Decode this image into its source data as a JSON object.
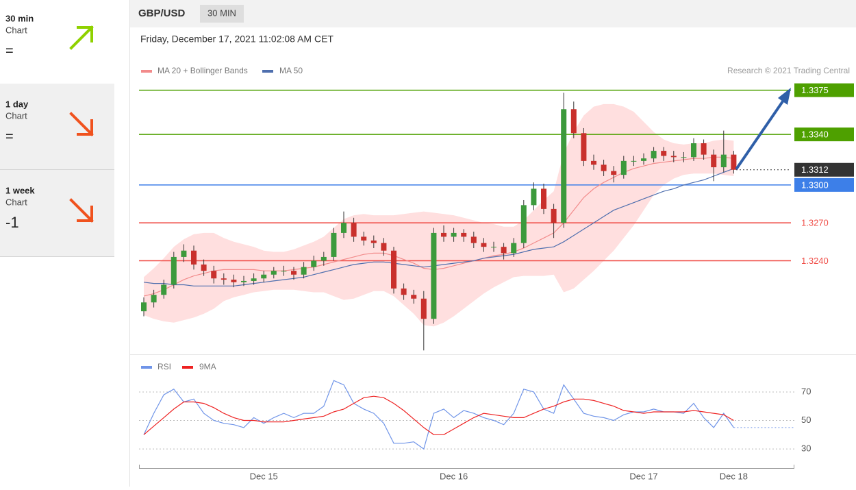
{
  "header": {
    "symbol": "GBP/USD",
    "timeframe": "30 MIN",
    "timestamp": "Friday, December 17, 2021 11:02:08 AM CET"
  },
  "sidebar": {
    "items": [
      {
        "period": "30 min",
        "kind": "Chart",
        "signal": "=",
        "arrow": "up"
      },
      {
        "period": "1 day",
        "kind": "Chart",
        "signal": "=",
        "arrow": "down"
      },
      {
        "period": "1 week",
        "kind": "Chart",
        "signal": "-1",
        "arrow": "down"
      }
    ]
  },
  "chart_data": [
    {
      "type": "candlestick",
      "credit": "Research © 2021 Trading Central",
      "categories": [
        null,
        null,
        null,
        null,
        null,
        null,
        null,
        null,
        null,
        null,
        null,
        null,
        "Dec 15",
        null,
        null,
        null,
        null,
        null,
        null,
        null,
        null,
        null,
        null,
        null,
        null,
        null,
        null,
        null,
        null,
        null,
        null,
        "Dec 16",
        null,
        null,
        null,
        null,
        null,
        null,
        null,
        null,
        null,
        null,
        null,
        null,
        null,
        null,
        null,
        null,
        null,
        null,
        "Dec 17",
        null,
        null,
        null,
        null,
        null,
        null,
        null,
        null,
        "Dec 18"
      ],
      "up_color": "#3c9a3c",
      "down_color": "#c9302c",
      "band_color": "#ffdfdf",
      "candles": [
        [
          1.32,
          1.3211,
          1.3196,
          1.3207
        ],
        [
          1.3207,
          1.3217,
          1.3203,
          1.3213
        ],
        [
          1.3213,
          1.3225,
          1.321,
          1.3221
        ],
        [
          1.3221,
          1.3247,
          1.3218,
          1.3243
        ],
        [
          1.3243,
          1.3253,
          1.3239,
          1.3248
        ],
        [
          1.3248,
          1.3252,
          1.3233,
          1.3237
        ],
        [
          1.3237,
          1.3241,
          1.3228,
          1.3232
        ],
        [
          1.3232,
          1.3236,
          1.3222,
          1.3226
        ],
        [
          1.3226,
          1.323,
          1.3221,
          1.3225
        ],
        [
          1.3225,
          1.3229,
          1.3219,
          1.3223
        ],
        [
          1.3223,
          1.3228,
          1.322,
          1.3224
        ],
        [
          1.3224,
          1.323,
          1.3221,
          1.3226
        ],
        [
          1.3226,
          1.3232,
          1.3223,
          1.3229
        ],
        [
          1.3229,
          1.3235,
          1.3226,
          1.3232
        ],
        [
          1.3232,
          1.3236,
          1.3228,
          1.3232
        ],
        [
          1.3232,
          1.3235,
          1.3225,
          1.3229
        ],
        [
          1.3229,
          1.3239,
          1.3226,
          1.3235
        ],
        [
          1.3235,
          1.3244,
          1.3232,
          1.324
        ],
        [
          1.324,
          1.3247,
          1.3236,
          1.3243
        ],
        [
          1.3243,
          1.3266,
          1.324,
          1.3262
        ],
        [
          1.3262,
          1.3279,
          1.3258,
          1.327
        ],
        [
          1.327,
          1.3274,
          1.3255,
          1.3259
        ],
        [
          1.3259,
          1.3263,
          1.3252,
          1.3256
        ],
        [
          1.3256,
          1.326,
          1.325,
          1.3254
        ],
        [
          1.3254,
          1.3258,
          1.3244,
          1.3248
        ],
        [
          1.3248,
          1.3251,
          1.3214,
          1.3218
        ],
        [
          1.3218,
          1.3222,
          1.3209,
          1.3213
        ],
        [
          1.3213,
          1.3217,
          1.3206,
          1.321
        ],
        [
          1.321,
          1.3216,
          1.3169,
          1.3194
        ],
        [
          1.3194,
          1.3266,
          1.319,
          1.3262
        ],
        [
          1.3262,
          1.3268,
          1.3255,
          1.3259
        ],
        [
          1.3259,
          1.3266,
          1.3255,
          1.3262
        ],
        [
          1.3262,
          1.3265,
          1.3255,
          1.3259
        ],
        [
          1.3259,
          1.3263,
          1.325,
          1.3254
        ],
        [
          1.3254,
          1.3258,
          1.3247,
          1.3251
        ],
        [
          1.3251,
          1.3255,
          1.3247,
          1.3251
        ],
        [
          1.3251,
          1.3254,
          1.3241,
          1.3246
        ],
        [
          1.3246,
          1.3258,
          1.3243,
          1.3254
        ],
        [
          1.3254,
          1.3288,
          1.325,
          1.3284
        ],
        [
          1.3284,
          1.3302,
          1.328,
          1.3297
        ],
        [
          1.3297,
          1.3301,
          1.3277,
          1.3281
        ],
        [
          1.3281,
          1.3285,
          1.3258,
          1.327
        ],
        [
          1.327,
          1.3373,
          1.3266,
          1.336
        ],
        [
          1.336,
          1.3366,
          1.3337,
          1.3341
        ],
        [
          1.3341,
          1.3345,
          1.3315,
          1.3319
        ],
        [
          1.3319,
          1.3324,
          1.3312,
          1.3316
        ],
        [
          1.3316,
          1.332,
          1.3307,
          1.3311
        ],
        [
          1.3311,
          1.3315,
          1.3302,
          1.3308
        ],
        [
          1.3308,
          1.3323,
          1.3305,
          1.3319
        ],
        [
          1.3319,
          1.3323,
          1.3315,
          1.3319
        ],
        [
          1.3319,
          1.3325,
          1.3316,
          1.3321
        ],
        [
          1.3321,
          1.333,
          1.3318,
          1.3327
        ],
        [
          1.3327,
          1.333,
          1.3319,
          1.3323
        ],
        [
          1.3323,
          1.3327,
          1.3318,
          1.3322
        ],
        [
          1.3322,
          1.3326,
          1.3318,
          1.3322
        ],
        [
          1.3322,
          1.3337,
          1.3319,
          1.3333
        ],
        [
          1.3333,
          1.3336,
          1.332,
          1.3324
        ],
        [
          1.3324,
          1.3328,
          1.3303,
          1.3314
        ],
        [
          1.3314,
          1.3343,
          1.331,
          1.3324
        ],
        [
          1.3324,
          1.3327,
          1.3309,
          1.3312
        ]
      ],
      "series": [
        {
          "name": "MA 20 + Bollinger Bands",
          "color": "#f28b8b",
          "values": [
            1.3212,
            1.3214,
            1.3217,
            1.3221,
            1.3225,
            1.3228,
            1.323,
            1.3232,
            1.3233,
            1.3233,
            1.3233,
            1.3233,
            1.3232,
            1.3232,
            1.3232,
            1.3233,
            1.3234,
            1.3235,
            1.3237,
            1.3239,
            1.3241,
            1.3243,
            1.3245,
            1.3246,
            1.3246,
            1.3244,
            1.3241,
            1.3238,
            1.3234,
            1.3233,
            1.3234,
            1.3236,
            1.3238,
            1.324,
            1.3242,
            1.3244,
            1.3245,
            1.3247,
            1.325,
            1.3254,
            1.3258,
            1.3262,
            1.327,
            1.328,
            1.329,
            1.3297,
            1.3302,
            1.3306,
            1.331,
            1.3313,
            1.3315,
            1.3317,
            1.3318,
            1.3319,
            1.332,
            1.3321,
            1.3321,
            1.3322,
            1.3322,
            1.3321
          ],
          "upper": [
            1.3227,
            1.3234,
            1.3242,
            1.3251,
            1.3257,
            1.3261,
            1.3262,
            1.3262,
            1.3258,
            1.3255,
            1.3253,
            1.3251,
            1.3248,
            1.3247,
            1.3247,
            1.3249,
            1.3252,
            1.3255,
            1.3259,
            1.3266,
            1.3273,
            1.3276,
            1.3277,
            1.3276,
            1.3276,
            1.3276,
            1.3277,
            1.3278,
            1.3279,
            1.3278,
            1.3277,
            1.3276,
            1.3274,
            1.3272,
            1.327,
            1.3269,
            1.3267,
            1.3267,
            1.3272,
            1.328,
            1.3288,
            1.3295,
            1.3325,
            1.3342,
            1.3355,
            1.3362,
            1.3364,
            1.3364,
            1.3362,
            1.3358,
            1.335,
            1.3342,
            1.3336,
            1.3333,
            1.3332,
            1.3333,
            1.3333,
            1.3335,
            1.3336,
            1.3335
          ],
          "lower": [
            1.3197,
            1.3194,
            1.3192,
            1.3191,
            1.3193,
            1.3195,
            1.3198,
            1.3202,
            1.3208,
            1.3211,
            1.3213,
            1.3215,
            1.3216,
            1.3217,
            1.3217,
            1.3217,
            1.3216,
            1.3215,
            1.3215,
            1.3212,
            1.3209,
            1.321,
            1.3213,
            1.3216,
            1.3216,
            1.3212,
            1.3205,
            1.3198,
            1.3189,
            1.3188,
            1.3191,
            1.3196,
            1.3202,
            1.3208,
            1.3214,
            1.3219,
            1.3223,
            1.3227,
            1.3228,
            1.3228,
            1.3228,
            1.3229,
            1.3215,
            1.3218,
            1.3225,
            1.3232,
            1.324,
            1.3248,
            1.3258,
            1.3268,
            1.328,
            1.3292,
            1.33,
            1.3305,
            1.3308,
            1.3309,
            1.3309,
            1.3309,
            1.3308,
            1.3307
          ]
        },
        {
          "name": "MA 50",
          "color": "#4f6fae",
          "values": [
            1.3223,
            1.3222,
            1.3222,
            1.3221,
            1.3221,
            1.322,
            1.322,
            1.322,
            1.322,
            1.322,
            1.3221,
            1.3222,
            1.3223,
            1.3224,
            1.3225,
            1.3226,
            1.3227,
            1.3229,
            1.3231,
            1.3233,
            1.3235,
            1.3237,
            1.3238,
            1.3239,
            1.3239,
            1.3238,
            1.3237,
            1.3236,
            1.3235,
            1.3236,
            1.3237,
            1.3238,
            1.3239,
            1.324,
            1.3242,
            1.3243,
            1.3244,
            1.3245,
            1.3247,
            1.3249,
            1.325,
            1.3251,
            1.3255,
            1.326,
            1.3265,
            1.327,
            1.3275,
            1.328,
            1.3283,
            1.3286,
            1.3289,
            1.3292,
            1.3295,
            1.3297,
            1.33,
            1.3302,
            1.3304,
            1.3307,
            1.331,
            1.3313
          ]
        }
      ],
      "levels": [
        {
          "value": 1.3375,
          "color": "#4ea000",
          "boxed": true
        },
        {
          "value": 1.334,
          "label": "1.3340",
          "color": "#4ea000",
          "boxed": true
        },
        {
          "value": 1.3312,
          "color": "#333333",
          "boxed": true,
          "dotted": true
        },
        {
          "value": 1.33,
          "label": "1.3300",
          "color": "#3d7fe8",
          "boxed": true
        },
        {
          "value": 1.327,
          "label": "1.3270",
          "color": "#f0504a",
          "boxed": false
        },
        {
          "value": 1.324,
          "label": "1.3240",
          "color": "#f0504a",
          "boxed": false
        }
      ],
      "ylim": [
        1.3167,
        1.3422
      ]
    },
    {
      "type": "line",
      "ylim": [
        18,
        95
      ],
      "yticks": [
        30,
        50,
        70
      ],
      "grid": true,
      "series": [
        {
          "name": "RSI",
          "color": "#6f94e8",
          "values": [
            40,
            55,
            68,
            72,
            63,
            65,
            55,
            50,
            48,
            47,
            45,
            52,
            48,
            52,
            55,
            52,
            55,
            55,
            60,
            78,
            75,
            62,
            58,
            55,
            48,
            34,
            34,
            35,
            30,
            55,
            58,
            52,
            57,
            55,
            52,
            50,
            47,
            55,
            72,
            70,
            58,
            55,
            75,
            65,
            55,
            53,
            52,
            50,
            54,
            56,
            56,
            58,
            56,
            56,
            55,
            62,
            52,
            45,
            55,
            45
          ]
        },
        {
          "name": "9MA",
          "color": "#ee2222",
          "values": [
            40,
            46,
            52,
            58,
            63,
            63,
            62,
            59,
            55,
            52,
            50,
            50,
            49,
            49,
            49,
            50,
            51,
            52,
            53,
            56,
            58,
            62,
            66,
            67,
            66,
            62,
            57,
            51,
            45,
            40,
            40,
            44,
            48,
            52,
            55,
            54,
            53,
            52,
            52,
            55,
            58,
            60,
            63,
            65,
            65,
            64,
            62,
            60,
            57,
            56,
            55,
            56,
            56,
            56,
            56,
            57,
            56,
            55,
            54,
            50
          ]
        }
      ]
    }
  ]
}
